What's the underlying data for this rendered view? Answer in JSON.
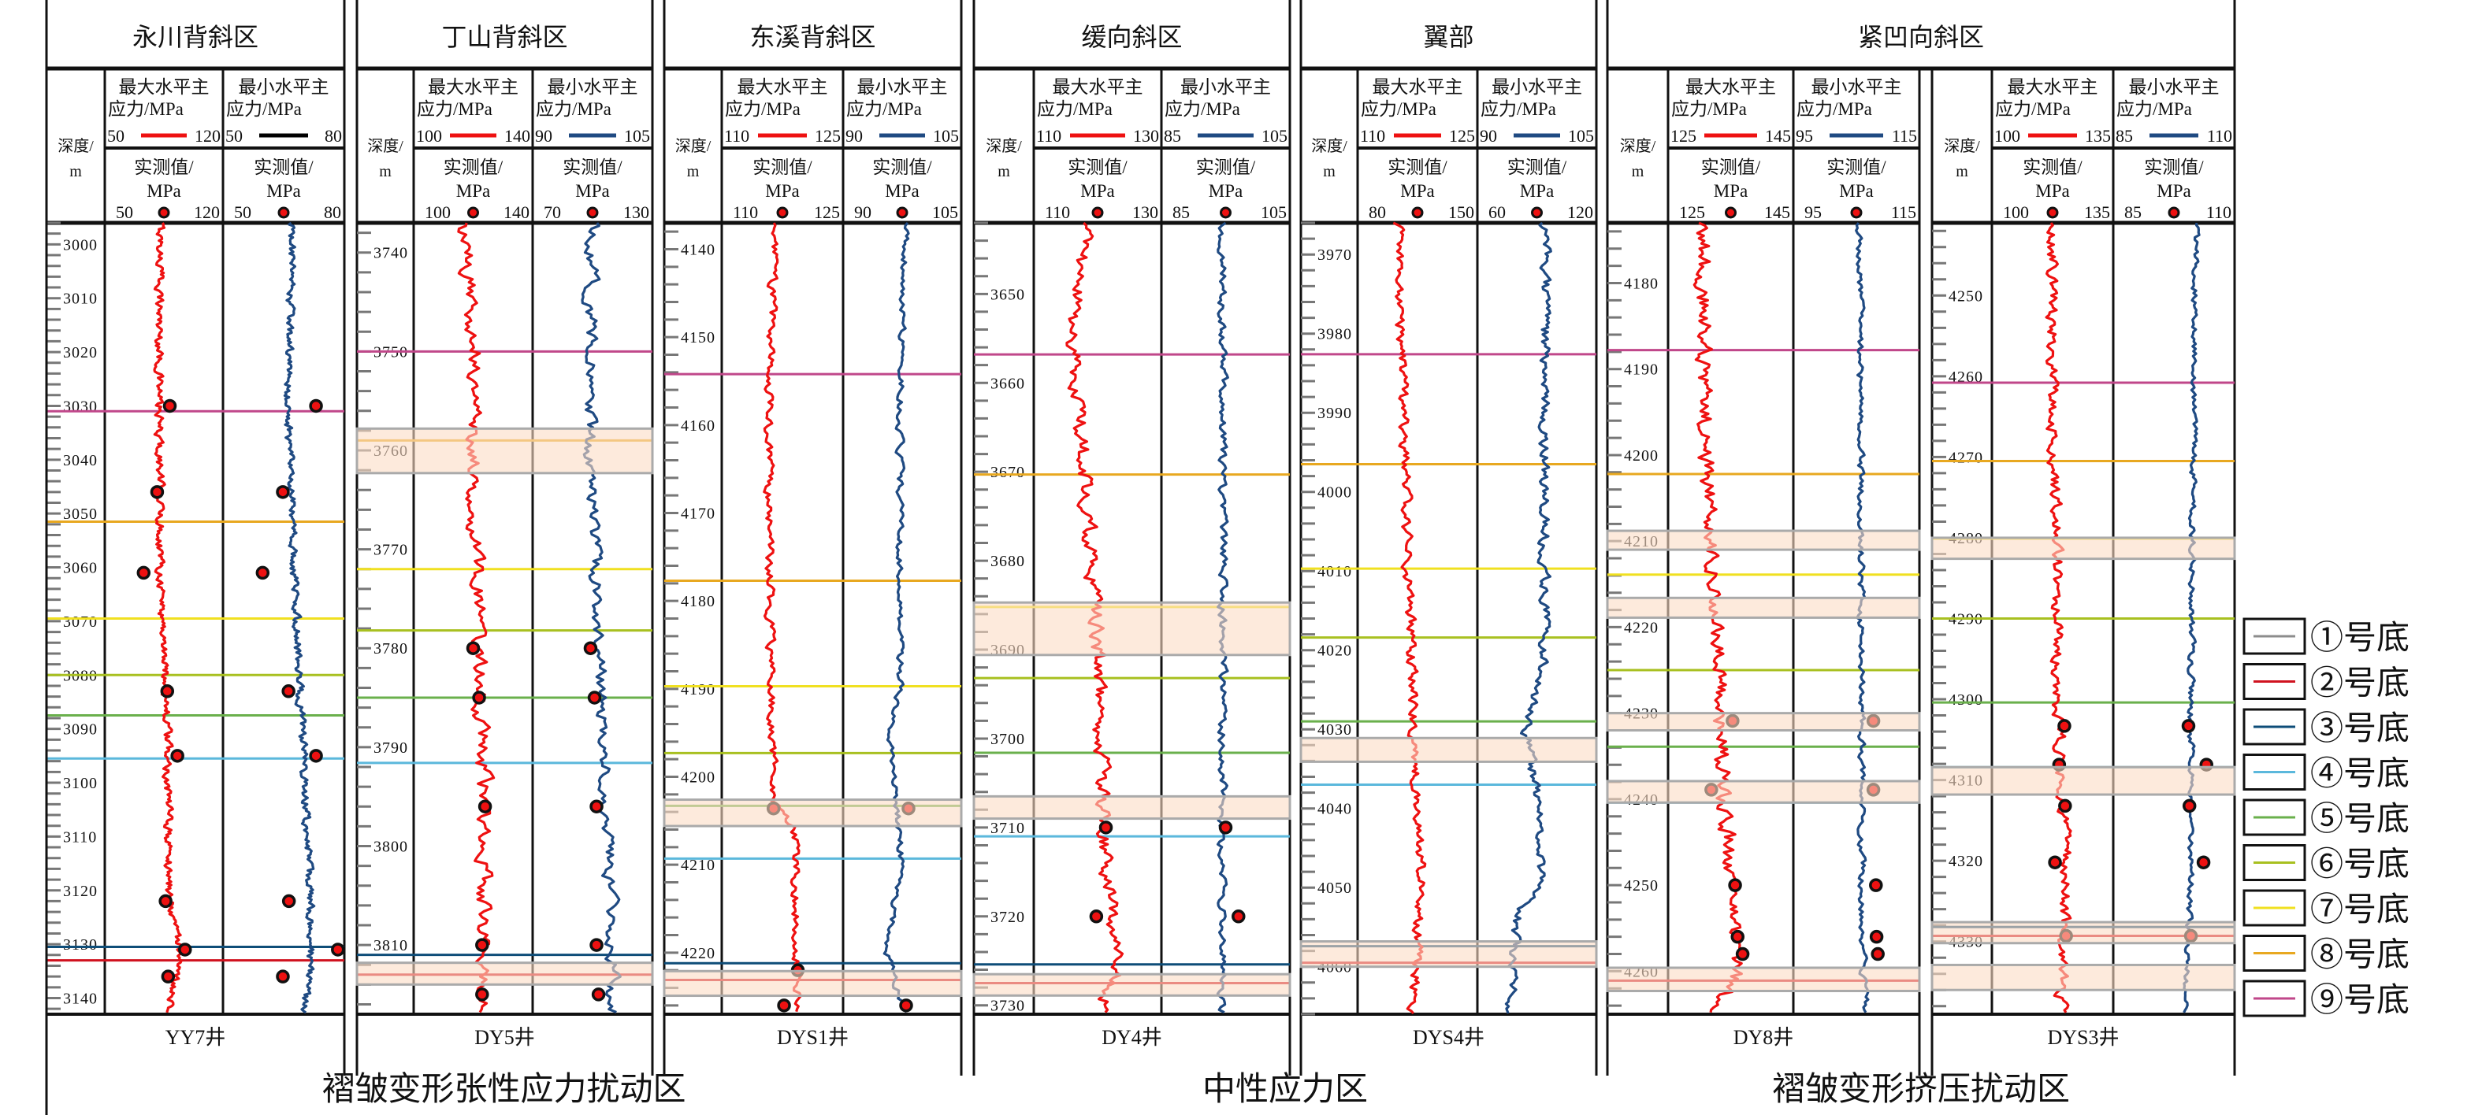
{
  "chart_data": {
    "type": "line",
    "labels": {
      "depth": [
        "深度/",
        "m"
      ],
      "max": [
        "最大水平主",
        "应力/MPa"
      ],
      "min": [
        "最小水平主",
        "应力/MPa"
      ],
      "measured": [
        "实测值/",
        "MPa"
      ]
    },
    "regions": [
      {
        "name": "永川背斜区",
        "wells": [
          0
        ]
      },
      {
        "name": "丁山背斜区",
        "wells": [
          1
        ]
      },
      {
        "name": "东溪背斜区",
        "wells": [
          2
        ]
      },
      {
        "name": "缓向斜区",
        "wells": [
          3
        ]
      },
      {
        "name": "翼部",
        "wells": [
          4
        ]
      },
      {
        "name": "紧凹向斜区",
        "wells": [
          5,
          6
        ]
      }
    ],
    "zones": [
      {
        "name": "褶皱变形张性应力扰动区",
        "wells": [
          0,
          1,
          2
        ]
      },
      {
        "name": "中性应力区",
        "wells": [
          3,
          4
        ]
      },
      {
        "name": "褶皱变形挤压扰动区",
        "wells": [
          5,
          6
        ]
      }
    ],
    "legend": [
      {
        "id": "1",
        "label": "①号底",
        "color": "#8c8c8c"
      },
      {
        "id": "2",
        "label": "②号底",
        "color": "#d0121f"
      },
      {
        "id": "3",
        "label": "③号底",
        "color": "#0e4d78"
      },
      {
        "id": "4",
        "label": "④号底",
        "color": "#5bb8dc"
      },
      {
        "id": "5",
        "label": "⑤号底",
        "color": "#6ab04c"
      },
      {
        "id": "6",
        "label": "⑥号底",
        "color": "#a8c020"
      },
      {
        "id": "7",
        "label": "⑦号底",
        "color": "#f0e020"
      },
      {
        "id": "8",
        "label": "⑧号底",
        "color": "#e8a820"
      },
      {
        "id": "9",
        "label": "⑨号底",
        "color": "#c0478a"
      }
    ],
    "colors": {
      "max_curve": "#ee1111",
      "min_curve": "#1f4a82",
      "point_fill": "#ee1111",
      "band": "#fbdcc4"
    },
    "wells": [
      {
        "name": "YY7井",
        "depth_range": [
          2996,
          3143
        ],
        "max_scale": [
          50,
          120
        ],
        "min_scale": [
          50,
          80
        ],
        "max_meas_scale": [
          50,
          120
        ],
        "min_meas_scale": [
          50,
          80
        ],
        "min_line_color": "#000000",
        "markers": {
          "9": 3031,
          "8": 3051.5,
          "7": 3069.5,
          "6": 3080,
          "5": 3087.5,
          "4": 3095.5,
          "3": 3130.5,
          "2": 3133
        },
        "bands": [],
        "max_points": [
          [
            3030,
            88.5
          ],
          [
            3046,
            81
          ],
          [
            3061,
            73
          ],
          [
            3083,
            87
          ],
          [
            3095,
            93
          ],
          [
            3122,
            86
          ],
          [
            3131,
            97.5
          ],
          [
            3136,
            87.5
          ]
        ],
        "min_points": [
          [
            3030,
            73
          ],
          [
            3046,
            64.8
          ],
          [
            3061,
            59.8
          ],
          [
            3083,
            66.2
          ],
          [
            3095,
            73
          ],
          [
            3122,
            66.3
          ],
          [
            3131,
            78.4
          ],
          [
            3136,
            64.8
          ]
        ],
        "max_trend": [
          [
            2996,
            83
          ],
          [
            3030,
            82
          ],
          [
            3060,
            83
          ],
          [
            3090,
            87
          ],
          [
            3120,
            88
          ],
          [
            3130,
            94
          ],
          [
            3143,
            89
          ]
        ],
        "min_trend": [
          [
            2996,
            67
          ],
          [
            3030,
            66
          ],
          [
            3060,
            67.5
          ],
          [
            3090,
            69.5
          ],
          [
            3130,
            72
          ],
          [
            3143,
            70
          ]
        ]
      },
      {
        "name": "DY5井",
        "depth_range": [
          3737,
          3817
        ],
        "max_scale": [
          100,
          140
        ],
        "min_scale": [
          90,
          105
        ],
        "max_meas_scale": [
          100,
          140
        ],
        "min_meas_scale": [
          70,
          130
        ],
        "min_line_color": "#1f4a82",
        "markers": {
          "9": 3750,
          "8": 3759,
          "7": 3772,
          "6": 3778.2,
          "5": 3785,
          "4": 3791.6,
          "3": 3811,
          "2": 3813
        },
        "bands": [
          [
            3757.8,
            3762.3
          ],
          [
            3811.8,
            3814
          ]
        ],
        "max_points": [
          [
            3780,
            120
          ],
          [
            3785,
            122
          ],
          [
            3796,
            124
          ],
          [
            3810,
            123
          ],
          [
            3815,
            123
          ]
        ],
        "min_points": [
          [
            3780,
            99
          ],
          [
            3785,
            101
          ],
          [
            3796,
            102
          ],
          [
            3810,
            102
          ],
          [
            3815,
            103
          ]
        ],
        "max_trend": [
          [
            3737,
            116
          ],
          [
            3750,
            121
          ],
          [
            3760,
            120
          ],
          [
            3780,
            122
          ],
          [
            3800,
            124
          ],
          [
            3817,
            123
          ]
        ],
        "min_trend": [
          [
            3737,
            97.5
          ],
          [
            3760,
            97
          ],
          [
            3790,
            99
          ],
          [
            3810,
            100
          ],
          [
            3817,
            100
          ]
        ]
      },
      {
        "name": "DYS1井",
        "depth_range": [
          4137,
          4227
        ],
        "max_scale": [
          110,
          125
        ],
        "min_scale": [
          90,
          105
        ],
        "max_meas_scale": [
          110,
          125
        ],
        "min_meas_scale": [
          90,
          105
        ],
        "min_line_color": "#1f4a82",
        "markers": {
          "9": 4154.2,
          "8": 4177.7,
          "7": 4189.7,
          "6": 4197.3,
          "5": 4203.3,
          "4": 4209.3,
          "3": 4221.2,
          "2": 4223.1
        },
        "bands": [
          [
            4202.6,
            4205.6
          ],
          [
            4222.1,
            4224.9
          ]
        ],
        "max_points": [
          [
            4203.6,
            116.4
          ],
          [
            4222,
            119.4
          ],
          [
            4226,
            117.7
          ]
        ],
        "min_points": [
          [
            4203.6,
            98.3
          ],
          [
            4226,
            98
          ]
        ],
        "max_trend": [
          [
            4137,
            116.5
          ],
          [
            4160,
            115.8
          ],
          [
            4190,
            116
          ],
          [
            4203,
            116.5
          ],
          [
            4206,
            119
          ],
          [
            4226,
            119.5
          ]
        ],
        "min_trend": [
          [
            4137,
            98
          ],
          [
            4160,
            97.2
          ],
          [
            4190,
            97.2
          ],
          [
            4195,
            96
          ],
          [
            4210,
            97.5
          ],
          [
            4220,
            95.5
          ],
          [
            4227,
            98
          ]
        ]
      },
      {
        "name": "DY4井",
        "depth_range": [
          3642,
          3731
        ],
        "max_scale": [
          110,
          130
        ],
        "min_scale": [
          85,
          105
        ],
        "max_meas_scale": [
          110,
          130
        ],
        "min_meas_scale": [
          85,
          105
        ],
        "min_line_color": "#1f4a82",
        "markers": {
          "9": 3656.8,
          "8": 3670.3,
          "7": 3685.2,
          "6": 3693.2,
          "5": 3701.6,
          "4": 3711,
          "3": 3725.4,
          "2": 3727.5
        },
        "bands": [
          [
            3684.7,
            3690.6
          ],
          [
            3706.5,
            3709
          ],
          [
            3726.5,
            3728.9
          ]
        ],
        "max_points": [
          [
            3710,
            121.3
          ],
          [
            3720,
            119.8
          ]
        ],
        "min_points": [
          [
            3710,
            95
          ],
          [
            3720,
            97
          ]
        ],
        "max_trend": [
          [
            3642,
            118
          ],
          [
            3655,
            116
          ],
          [
            3670,
            118
          ],
          [
            3690,
            120
          ],
          [
            3710,
            121
          ],
          [
            3725,
            123
          ],
          [
            3731,
            121
          ]
        ],
        "min_trend": [
          [
            3642,
            94.5
          ],
          [
            3700,
            94.5
          ],
          [
            3731,
            94.5
          ]
        ]
      },
      {
        "name": "DYS4井",
        "depth_range": [
          3966,
          4066
        ],
        "max_scale": [
          110,
          125
        ],
        "min_scale": [
          90,
          105
        ],
        "max_meas_scale": [
          80,
          150
        ],
        "min_meas_scale": [
          60,
          120
        ],
        "min_line_color": "#1f4a82",
        "markers": {
          "9": 3982.6,
          "8": 3996.5,
          "7": 4009.7,
          "6": 4018.4,
          "5": 4029,
          "4": 4037,
          "3": 4057.4,
          "2": 4059.5
        },
        "bands": [
          [
            4031.1,
            4034.1
          ],
          [
            4056.8,
            4060
          ]
        ],
        "max_points": [],
        "min_points": [],
        "max_trend": [
          [
            3966,
            115
          ],
          [
            4000,
            116
          ],
          [
            4030,
            117
          ],
          [
            4050,
            118
          ],
          [
            4066,
            117
          ]
        ],
        "min_trend": [
          [
            3966,
            98.5
          ],
          [
            3990,
            98.5
          ],
          [
            4020,
            98.5
          ],
          [
            4031,
            96
          ],
          [
            4040,
            98
          ],
          [
            4050,
            98
          ],
          [
            4053,
            95
          ],
          [
            4066,
            94
          ]
        ]
      },
      {
        "name": "DY8井",
        "depth_range": [
          4173,
          4265
        ],
        "max_scale": [
          125,
          145
        ],
        "min_scale": [
          95,
          115
        ],
        "max_meas_scale": [
          125,
          145
        ],
        "min_meas_scale": [
          95,
          115
        ],
        "min_line_color": "#1f4a82",
        "markers": {
          "9": 4187.8,
          "8": 4202.2,
          "7": 4213.9,
          "6": 4225,
          "5": 4233.9,
          "4": 4240.4,
          "3": 4259.6,
          "2": 4261.1
        },
        "bands": [
          [
            4208.8,
            4211
          ],
          [
            4216.6,
            4218.9
          ],
          [
            4230,
            4232
          ],
          [
            4237.9,
            4240.4
          ],
          [
            4259.6,
            4262.3
          ]
        ],
        "max_points": [
          [
            4230.9,
            135.3
          ],
          [
            4238.9,
            131.9
          ],
          [
            4250,
            135.7
          ],
          [
            4256,
            136.1
          ],
          [
            4258,
            136.9
          ]
        ],
        "min_points": [
          [
            4230.9,
            107.7
          ],
          [
            4238.9,
            107.7
          ],
          [
            4250,
            108.1
          ],
          [
            4256,
            108.2
          ],
          [
            4258,
            108.4
          ]
        ],
        "max_trend": [
          [
            4173,
            130.5
          ],
          [
            4200,
            131
          ],
          [
            4220,
            133
          ],
          [
            4240,
            134
          ],
          [
            4260,
            136
          ],
          [
            4265,
            132
          ]
        ],
        "min_trend": [
          [
            4173,
            105.5
          ],
          [
            4260,
            106
          ],
          [
            4265,
            106.5
          ]
        ]
      },
      {
        "name": "DYS3井",
        "depth_range": [
          4241,
          4339
        ],
        "max_scale": [
          100,
          135
        ],
        "min_scale": [
          85,
          110
        ],
        "max_meas_scale": [
          100,
          135
        ],
        "min_meas_scale": [
          85,
          110
        ],
        "min_line_color": "#1f4a82",
        "markers": {
          "9": 4260.8,
          "8": 4270.5,
          "7": 4280.1,
          "6": 4290,
          "5": 4300.4,
          "4": 4308.4,
          "3": 4328.2,
          "2": 4329.3
        },
        "bands": [
          [
            4280,
            4282.6
          ],
          [
            4308.4,
            4311.8
          ],
          [
            4327.6,
            4330.2
          ],
          [
            4332.9,
            4336
          ]
        ],
        "max_points": [
          [
            4303.3,
            120.9
          ],
          [
            4308.1,
            119.4
          ],
          [
            4313.2,
            121.1
          ],
          [
            4320.2,
            118.2
          ],
          [
            4329.3,
            121.4
          ]
        ],
        "min_points": [
          [
            4303.3,
            100.5
          ],
          [
            4308.1,
            104.2
          ],
          [
            4313.2,
            100.7
          ],
          [
            4320.2,
            103.6
          ],
          [
            4329.3,
            101
          ]
        ],
        "max_trend": [
          [
            4241,
            117.5
          ],
          [
            4260,
            117.5
          ],
          [
            4290,
            119
          ],
          [
            4300,
            119
          ],
          [
            4320,
            121.5
          ],
          [
            4339,
            120
          ]
        ],
        "min_trend": [
          [
            4241,
            102
          ],
          [
            4300,
            101
          ],
          [
            4320,
            101
          ],
          [
            4330,
            100.5
          ],
          [
            4339,
            99.5
          ]
        ]
      }
    ]
  }
}
